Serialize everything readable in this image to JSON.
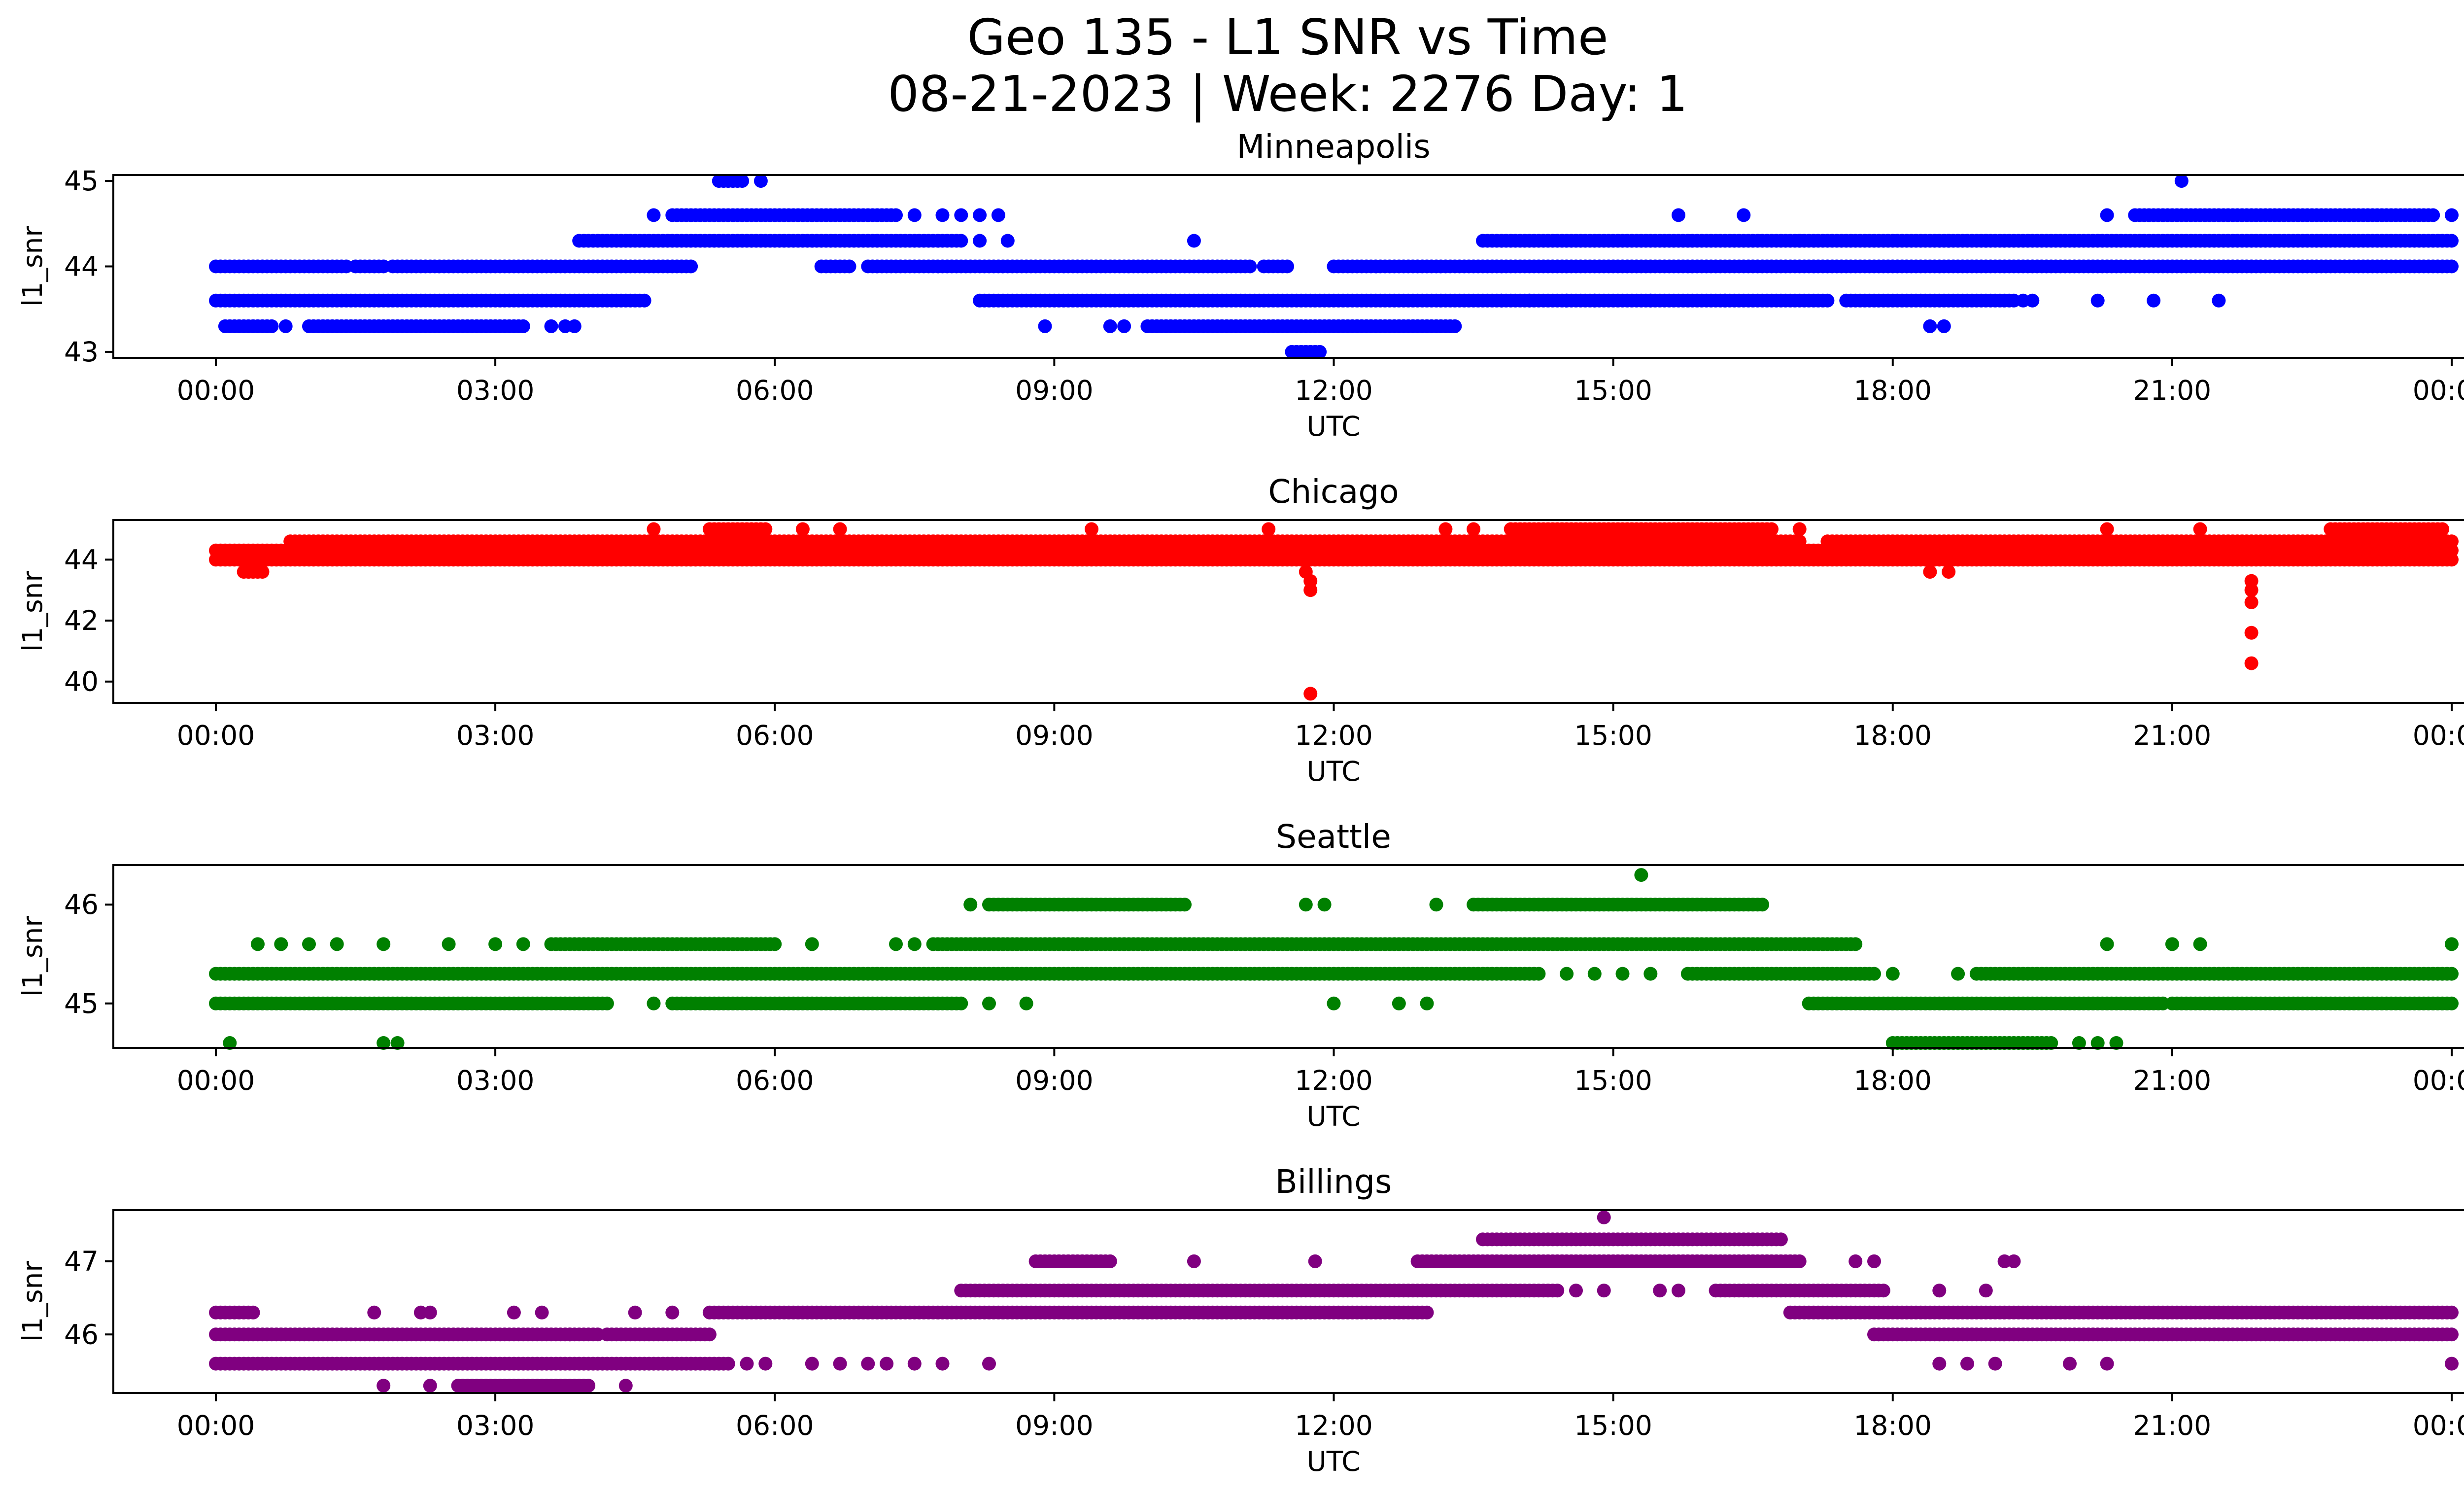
{
  "figure": {
    "title_line1": "Geo 135 - L1 SNR vs Time",
    "title_line2": "08-21-2023 | Week: 2276 Day: 1"
  },
  "chart_data": [
    {
      "type": "scatter",
      "title": "Minneapolis",
      "xlabel": "UTC",
      "ylabel": "l1_snr",
      "color": "#0000ff",
      "x_ticks": [
        "00:00",
        "03:00",
        "06:00",
        "09:00",
        "12:00",
        "15:00",
        "18:00",
        "21:00",
        "00:00"
      ],
      "xlim_hours": [
        -1.1,
        25.1
      ],
      "ylim": [
        42.93,
        45.07
      ],
      "y_ticks": [
        43,
        44,
        45
      ],
      "points": [
        {
          "y": 44.0,
          "segments": [
            [
              0,
              1.4
            ],
            [
              1.5,
              1.8
            ],
            [
              1.9,
              2.3
            ],
            [
              2.35,
              5.1
            ],
            [
              6.5,
              6.8
            ],
            [
              7.0,
              11.1
            ],
            [
              11.25,
              11.5
            ],
            [
              12.0,
              24.0
            ]
          ]
        },
        {
          "y": 43.6,
          "segments": [
            [
              0,
              4.6
            ],
            [
              8.2,
              17.3
            ],
            [
              17.5,
              19.3
            ]
          ],
          "singles": [
            13.8,
            14.1,
            14.5,
            14.8,
            15.4,
            16.2,
            19.4,
            19.5,
            20.2,
            20.8,
            21.5
          ]
        },
        {
          "y": 43.3,
          "segments": [
            [
              0.1,
              0.6
            ],
            [
              1.0,
              3.3
            ],
            [
              10.0,
              13.3
            ]
          ],
          "singles": [
            0.75,
            3.6,
            3.75,
            3.85,
            8.9,
            9.6,
            9.75,
            18.4,
            18.55
          ]
        },
        {
          "y": 44.3,
          "segments": [
            [
              3.9,
              8.0
            ],
            [
              13.6,
              24.0
            ]
          ],
          "singles": [
            8.2,
            8.5,
            10.5,
            17.0,
            18.6,
            19.0
          ]
        },
        {
          "y": 44.6,
          "segments": [
            [
              4.9,
              7.3
            ],
            [
              20.6,
              23.8
            ]
          ],
          "singles": [
            4.7,
            7.5,
            7.8,
            8.0,
            8.2,
            8.4,
            15.7,
            16.4,
            20.3,
            24.0
          ]
        },
        {
          "y": 45.0,
          "segments": [
            [
              5.4,
              5.65
            ]
          ],
          "singles": [
            5.85,
            21.1
          ]
        },
        {
          "y": 43.0,
          "segments": [
            [
              11.55,
              11.85
            ]
          ]
        }
      ]
    },
    {
      "type": "scatter",
      "title": "Chicago",
      "xlabel": "UTC",
      "ylabel": "l1_snr",
      "color": "#ff0000",
      "x_ticks": [
        "00:00",
        "03:00",
        "06:00",
        "09:00",
        "12:00",
        "15:00",
        "18:00",
        "21:00",
        "00:00"
      ],
      "xlim_hours": [
        -1.1,
        25.1
      ],
      "ylim": [
        39.3,
        45.3
      ],
      "y_ticks": [
        40,
        42,
        44
      ],
      "points": [
        {
          "y": 44.0,
          "segments": [
            [
              0,
              24.0
            ]
          ]
        },
        {
          "y": 44.3,
          "segments": [
            [
              0,
              24.0
            ]
          ]
        },
        {
          "y": 44.6,
          "segments": [
            [
              0.8,
              17.0
            ],
            [
              17.3,
              24.0
            ]
          ]
        },
        {
          "y": 43.6,
          "segments": [
            [
              0.3,
              0.5
            ]
          ],
          "singles": [
            11.7,
            18.4,
            18.6
          ]
        },
        {
          "y": 45.0,
          "segments": [
            [
              5.3,
              5.9
            ],
            [
              13.9,
              16.7
            ],
            [
              22.7,
              23.9
            ]
          ],
          "singles": [
            4.7,
            6.3,
            6.7,
            9.4,
            11.3,
            13.2,
            13.5,
            17.0,
            20.3,
            21.3
          ]
        },
        {
          "y": 43.3,
          "singles": [
            11.75,
            21.85
          ]
        },
        {
          "y": 43.0,
          "singles": [
            11.75,
            21.85
          ]
        },
        {
          "y": 42.6,
          "singles": [
            21.85
          ]
        },
        {
          "y": 41.6,
          "singles": [
            21.85
          ]
        },
        {
          "y": 40.6,
          "singles": [
            21.85
          ]
        },
        {
          "y": 39.6,
          "singles": [
            11.75
          ]
        }
      ]
    },
    {
      "type": "scatter",
      "title": "Seattle",
      "xlabel": "UTC",
      "ylabel": "l1_snr",
      "color": "#008000",
      "x_ticks": [
        "00:00",
        "03:00",
        "06:00",
        "09:00",
        "12:00",
        "15:00",
        "18:00",
        "21:00",
        "00:00"
      ],
      "xlim_hours": [
        -1.1,
        25.1
      ],
      "ylim": [
        44.55,
        46.4
      ],
      "y_ticks": [
        45,
        46
      ],
      "points": [
        {
          "y": 45.3,
          "segments": [
            [
              0,
              14.2
            ],
            [
              15.8,
              17.8
            ],
            [
              18.9,
              24.0
            ]
          ],
          "singles": [
            14.5,
            14.8,
            15.1,
            15.4,
            18.0,
            18.7
          ]
        },
        {
          "y": 45.0,
          "segments": [
            [
              0,
              4.2
            ],
            [
              4.9,
              8.0
            ],
            [
              17.1,
              20.9
            ],
            [
              21.0,
              24.0
            ]
          ],
          "singles": [
            4.7,
            8.3,
            8.7,
            12.0,
            12.7,
            13.0
          ]
        },
        {
          "y": 45.6,
          "segments": [
            [
              3.6,
              6.0
            ],
            [
              7.7,
              17.6
            ]
          ],
          "singles": [
            0.45,
            0.7,
            1.0,
            1.3,
            1.8,
            2.5,
            3.0,
            3.3,
            6.4,
            7.3,
            7.5,
            20.3,
            21.0,
            21.3,
            24.0
          ]
        },
        {
          "y": 46.0,
          "segments": [
            [
              8.3,
              10.4
            ],
            [
              13.5,
              16.6
            ]
          ],
          "singles": [
            8.1,
            11.7,
            11.9,
            13.1
          ]
        },
        {
          "y": 44.6,
          "segments": [
            [
              18.0,
              19.7
            ]
          ],
          "singles": [
            0.15,
            1.8,
            1.95,
            20.0,
            20.2,
            20.4
          ]
        },
        {
          "y": 46.3,
          "singles": [
            15.3
          ]
        }
      ]
    },
    {
      "type": "scatter",
      "title": "Billings",
      "xlabel": "UTC",
      "ylabel": "l1_snr",
      "color": "#800080",
      "x_ticks": [
        "00:00",
        "03:00",
        "06:00",
        "09:00",
        "12:00",
        "15:00",
        "18:00",
        "21:00",
        "00:00"
      ],
      "xlim_hours": [
        -1.1,
        25.1
      ],
      "ylim": [
        45.2,
        47.7
      ],
      "y_ticks": [
        46,
        47
      ],
      "points": [
        {
          "y": 46.0,
          "segments": [
            [
              0,
              4.1
            ],
            [
              4.2,
              5.3
            ],
            [
              17.8,
              24.0
            ]
          ],
          "singles": [
            3.8
          ]
        },
        {
          "y": 46.3,
          "segments": [
            [
              0,
              0.4
            ],
            [
              5.3,
              13.0
            ],
            [
              16.9,
              24.0
            ]
          ],
          "singles": [
            1.7,
            2.2,
            2.3,
            3.2,
            3.5,
            4.5,
            4.9
          ]
        },
        {
          "y": 45.6,
          "segments": [
            [
              0,
              5.5
            ]
          ],
          "singles": [
            5.7,
            5.9,
            6.4,
            6.7,
            7.0,
            7.2,
            7.5,
            7.8,
            8.3,
            18.5,
            18.8,
            19.1,
            19.9,
            20.3,
            24.0
          ]
        },
        {
          "y": 45.3,
          "segments": [
            [
              2.6,
              4.0
            ]
          ],
          "singles": [
            1.8,
            2.3,
            4.4
          ]
        },
        {
          "y": 46.6,
          "segments": [
            [
              8.0,
              14.4
            ],
            [
              16.1,
              17.9
            ]
          ],
          "singles": [
            14.6,
            14.9,
            15.5,
            15.7,
            18.5,
            19.0
          ]
        },
        {
          "y": 47.0,
          "segments": [
            [
              8.8,
              9.6
            ],
            [
              12.9,
              17.0
            ]
          ],
          "singles": [
            10.5,
            11.8,
            17.6,
            17.8,
            19.2,
            19.3
          ]
        },
        {
          "y": 47.3,
          "segments": [
            [
              13.6,
              16.8
            ]
          ]
        },
        {
          "y": 47.6,
          "singles": [
            14.9
          ]
        }
      ]
    }
  ]
}
